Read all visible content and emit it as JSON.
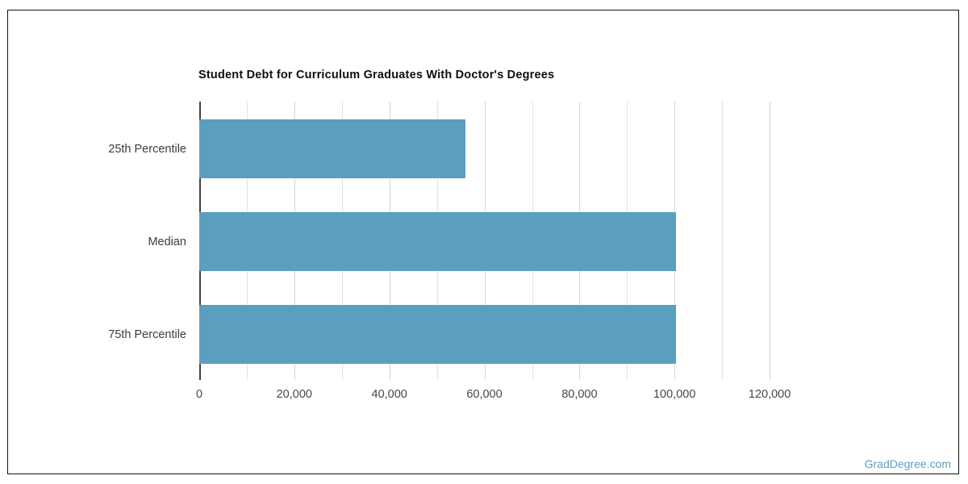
{
  "frame": {
    "background": "#ffffff",
    "border_color": "#141414"
  },
  "watermark": {
    "text": "GradDegree.com",
    "color": "#5e9fc2"
  },
  "chart_data": {
    "type": "bar",
    "orientation": "horizontal",
    "title": "Student Debt for Curriculum Graduates With Doctor's Degrees",
    "categories": [
      "25th Percentile",
      "Median",
      "75th Percentile"
    ],
    "values": [
      56000,
      100300,
      100300
    ],
    "xlabel": "",
    "ylabel": "",
    "xlim": [
      0,
      130000
    ],
    "x_ticks": [
      0,
      20000,
      40000,
      60000,
      80000,
      100000,
      120000
    ],
    "x_tick_labels": [
      "0",
      "20,000",
      "40,000",
      "60,000",
      "80,000",
      "100,000",
      "120,000"
    ],
    "minor_grid_step": 10000,
    "grid": true,
    "legend": false,
    "bar_color": "#5a9fbe",
    "gridline_color": "#e3e3e3",
    "major_gridline_color": "#d5d5d5",
    "axis_line_color": "#424242",
    "category_label_color": "#3c3c3c",
    "tick_label_color": "#474747",
    "title_color": "#0f0f0f"
  }
}
